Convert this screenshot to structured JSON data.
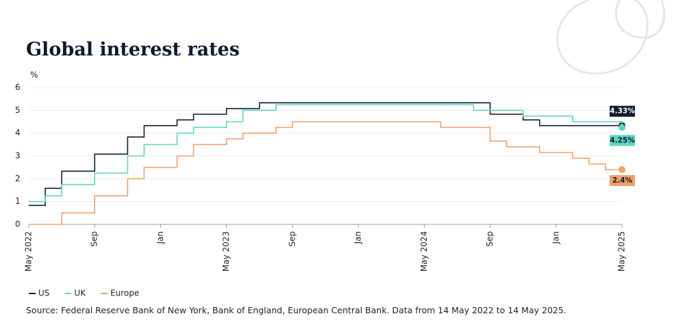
{
  "chart_data": {
    "type": "step-line",
    "title": "Global interest rates",
    "y_label": "%",
    "source": "Source: Federal Reserve Bank of New York, Bank of England, European Central Bank. Data from 14 May 2022 to 14 May 2025.",
    "categories": [
      "2022-05",
      "2022-06",
      "2022-07",
      "2022-08",
      "2022-09",
      "2022-10",
      "2022-11",
      "2022-12",
      "2023-01",
      "2023-02",
      "2023-03",
      "2023-04",
      "2023-05",
      "2023-06",
      "2023-07",
      "2023-08",
      "2023-09",
      "2023-10",
      "2023-11",
      "2023-12",
      "2024-01",
      "2024-02",
      "2024-03",
      "2024-04",
      "2024-05",
      "2024-06",
      "2024-07",
      "2024-08",
      "2024-09",
      "2024-10",
      "2024-11",
      "2024-12",
      "2025-01",
      "2025-02",
      "2025-03",
      "2025-04",
      "2025-05"
    ],
    "xticks": [
      {
        "value": "2022-05",
        "label": "May 2022"
      },
      {
        "value": "2022-09",
        "label": "Sep"
      },
      {
        "value": "2023-01",
        "label": "Jan"
      },
      {
        "value": "2023-05",
        "label": "May 2023"
      },
      {
        "value": "2023-09",
        "label": "Sep"
      },
      {
        "value": "2024-01",
        "label": "Jan"
      },
      {
        "value": "2024-05",
        "label": "May 2024"
      },
      {
        "value": "2024-09",
        "label": "Sep"
      },
      {
        "value": "2025-01",
        "label": "Jan"
      },
      {
        "value": "2025-05",
        "label": "May 2025"
      }
    ],
    "ylim": [
      0,
      6
    ],
    "yticks": [
      0,
      1,
      2,
      3,
      4,
      5,
      6
    ],
    "grid": true,
    "legend": "bottom-left",
    "series": [
      {
        "name": "US",
        "color": "#0f1a2e",
        "values": [
          0.83,
          1.58,
          2.33,
          2.33,
          3.08,
          3.08,
          3.83,
          4.33,
          4.33,
          4.58,
          4.83,
          4.83,
          5.08,
          5.08,
          5.33,
          5.33,
          5.33,
          5.33,
          5.33,
          5.33,
          5.33,
          5.33,
          5.33,
          5.33,
          5.33,
          5.33,
          5.33,
          5.33,
          4.83,
          4.83,
          4.58,
          4.33,
          4.33,
          4.33,
          4.33,
          4.33,
          4.33
        ],
        "value_labels": [
          null,
          null,
          null,
          null,
          null,
          null,
          null,
          null,
          null,
          null,
          null,
          null,
          null,
          null,
          null,
          null,
          null,
          null,
          null,
          null,
          null,
          null,
          null,
          null,
          null,
          null,
          null,
          null,
          null,
          null,
          null,
          null,
          null,
          null,
          null,
          null,
          "4.33%"
        ]
      },
      {
        "name": "UK",
        "color": "#5fd4c0",
        "values": [
          1.0,
          1.25,
          1.75,
          1.75,
          2.25,
          2.25,
          3.0,
          3.5,
          3.5,
          4.0,
          4.25,
          4.25,
          4.5,
          5.0,
          5.0,
          5.25,
          5.25,
          5.25,
          5.25,
          5.25,
          5.25,
          5.25,
          5.25,
          5.25,
          5.25,
          5.25,
          5.25,
          5.0,
          5.0,
          5.0,
          4.75,
          4.75,
          4.75,
          4.5,
          4.5,
          4.5,
          4.25
        ],
        "value_labels": [
          null,
          null,
          null,
          null,
          null,
          null,
          null,
          null,
          null,
          null,
          null,
          null,
          null,
          null,
          null,
          null,
          null,
          null,
          null,
          null,
          null,
          null,
          null,
          null,
          null,
          null,
          null,
          null,
          null,
          null,
          null,
          null,
          null,
          null,
          null,
          null,
          "4.25%"
        ]
      },
      {
        "name": "Europe",
        "color": "#f0a06a",
        "values": [
          0,
          0,
          0.5,
          0.5,
          1.25,
          1.25,
          2.0,
          2.5,
          2.5,
          3.0,
          3.5,
          3.5,
          3.75,
          4.0,
          4.0,
          4.25,
          4.5,
          4.5,
          4.5,
          4.5,
          4.5,
          4.5,
          4.5,
          4.5,
          4.5,
          4.25,
          4.25,
          4.25,
          3.65,
          3.4,
          3.4,
          3.15,
          3.15,
          2.9,
          2.65,
          2.4,
          2.4
        ],
        "value_labels": [
          null,
          null,
          null,
          null,
          null,
          null,
          null,
          null,
          null,
          null,
          null,
          null,
          null,
          null,
          null,
          null,
          null,
          null,
          null,
          null,
          null,
          null,
          null,
          null,
          null,
          null,
          null,
          null,
          null,
          null,
          null,
          null,
          null,
          null,
          null,
          null,
          "2.4%"
        ]
      }
    ]
  }
}
